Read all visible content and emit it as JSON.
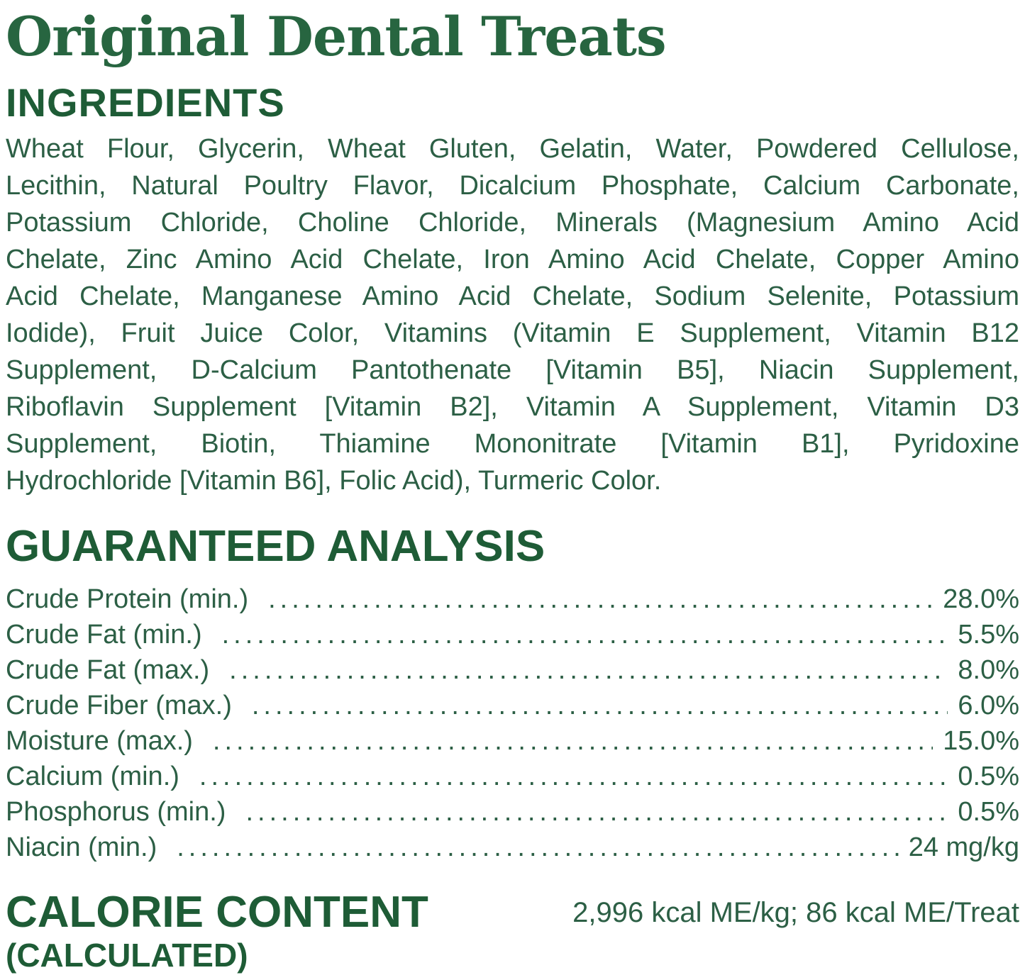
{
  "page": {
    "title": "Original Dental Treats"
  },
  "ingredients": {
    "heading": "INGREDIENTS",
    "lines": [
      "Wheat Flour, Glycerin, Wheat Gluten, Gelatin, Water, Powdered Cellulose,",
      "Lecithin, Natural Poultry Flavor, Dicalcium Phosphate, Calcium Carbonate,",
      "Potassium Chloride, Choline Chloride, Minerals (Magnesium Amino Acid",
      "Chelate, Zinc Amino Acid Chelate, Iron Amino Acid Chelate, Copper Amino",
      "Acid Chelate, Manganese Amino Acid Chelate, Sodium Selenite, Potassium",
      "Iodide), Fruit Juice Color, Vitamins (Vitamin E Supplement, Vitamin B12",
      "Supplement, D-Calcium Pantothenate [Vitamin B5], Niacin Supplement,",
      "Riboflavin Supplement [Vitamin B2], Vitamin A Supplement, Vitamin D3",
      "Supplement, Biotin, Thiamine Mononitrate [Vitamin B1], Pyridoxine",
      "Hydrochloride [Vitamin B6], Folic Acid), Turmeric Color."
    ]
  },
  "analysis": {
    "heading": "GUARANTEED ANALYSIS",
    "rows": [
      {
        "label": "Crude Protein (min.)",
        "value": "28.0%"
      },
      {
        "label": "Crude Fat (min.)",
        "value": "5.5%"
      },
      {
        "label": "Crude Fat (max.)",
        "value": "8.0%"
      },
      {
        "label": "Crude Fiber (max.)",
        "value": "6.0%"
      },
      {
        "label": "Moisture (max.)",
        "value": "15.0%"
      },
      {
        "label": "Calcium (min.)",
        "value": "0.5%"
      },
      {
        "label": "Phosphorus (min.)",
        "value": "0.5%"
      },
      {
        "label": "Niacin (min.)",
        "value": "24 mg/kg"
      }
    ]
  },
  "calories": {
    "heading": "CALORIE CONTENT",
    "subheading": "(CALCULATED)",
    "value": "2,996 kcal ME/kg; 86 kcal ME/Treat"
  },
  "colors": {
    "title_green": "#276540",
    "heading_green": "#1e5c36",
    "body_green": "#2c5f45"
  }
}
